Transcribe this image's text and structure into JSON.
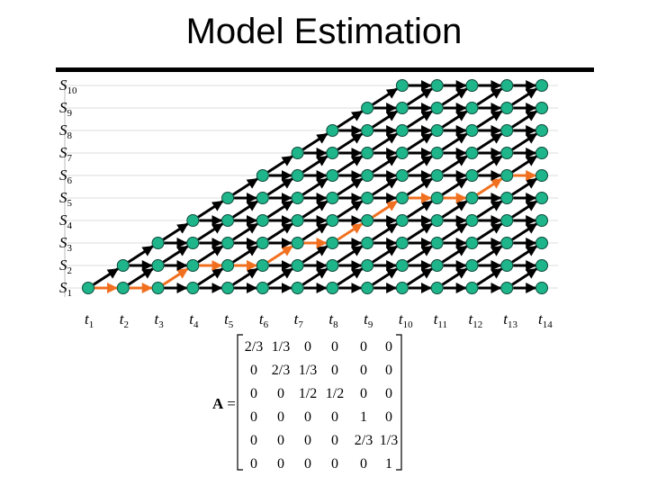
{
  "title": "Model Estimation",
  "states": [
    {
      "symbol": "S",
      "sub": "1"
    },
    {
      "symbol": "S",
      "sub": "2"
    },
    {
      "symbol": "S",
      "sub": "3"
    },
    {
      "symbol": "S",
      "sub": "4"
    },
    {
      "symbol": "S",
      "sub": "5"
    },
    {
      "symbol": "S",
      "sub": "6"
    },
    {
      "symbol": "S",
      "sub": "7"
    },
    {
      "symbol": "S",
      "sub": "8"
    },
    {
      "symbol": "S",
      "sub": "9"
    },
    {
      "symbol": "S",
      "sub": "10"
    }
  ],
  "times": [
    {
      "symbol": "t",
      "sub": "1"
    },
    {
      "symbol": "t",
      "sub": "2"
    },
    {
      "symbol": "t",
      "sub": "3"
    },
    {
      "symbol": "t",
      "sub": "4"
    },
    {
      "symbol": "t",
      "sub": "5"
    },
    {
      "symbol": "t",
      "sub": "6"
    },
    {
      "symbol": "t",
      "sub": "7"
    },
    {
      "symbol": "t",
      "sub": "8"
    },
    {
      "symbol": "t",
      "sub": "9"
    },
    {
      "symbol": "t",
      "sub": "10"
    },
    {
      "symbol": "t",
      "sub": "11"
    },
    {
      "symbol": "t",
      "sub": "12"
    },
    {
      "symbol": "t",
      "sub": "13"
    },
    {
      "symbol": "t",
      "sub": "14"
    }
  ],
  "matrix": {
    "name": "A",
    "equals": "=",
    "rows": [
      [
        "2/3",
        "1/3",
        "0",
        "0",
        "0",
        "0"
      ],
      [
        "0",
        "2/3",
        "1/3",
        "0",
        "0",
        "0"
      ],
      [
        "0",
        "0",
        "1/2",
        "1/2",
        "0",
        "0"
      ],
      [
        "0",
        "0",
        "0",
        "0",
        "1",
        "0"
      ],
      [
        "0",
        "0",
        "0",
        "0",
        "2/3",
        "1/3"
      ],
      [
        "0",
        "0",
        "0",
        "0",
        "0",
        "1"
      ]
    ]
  }
}
